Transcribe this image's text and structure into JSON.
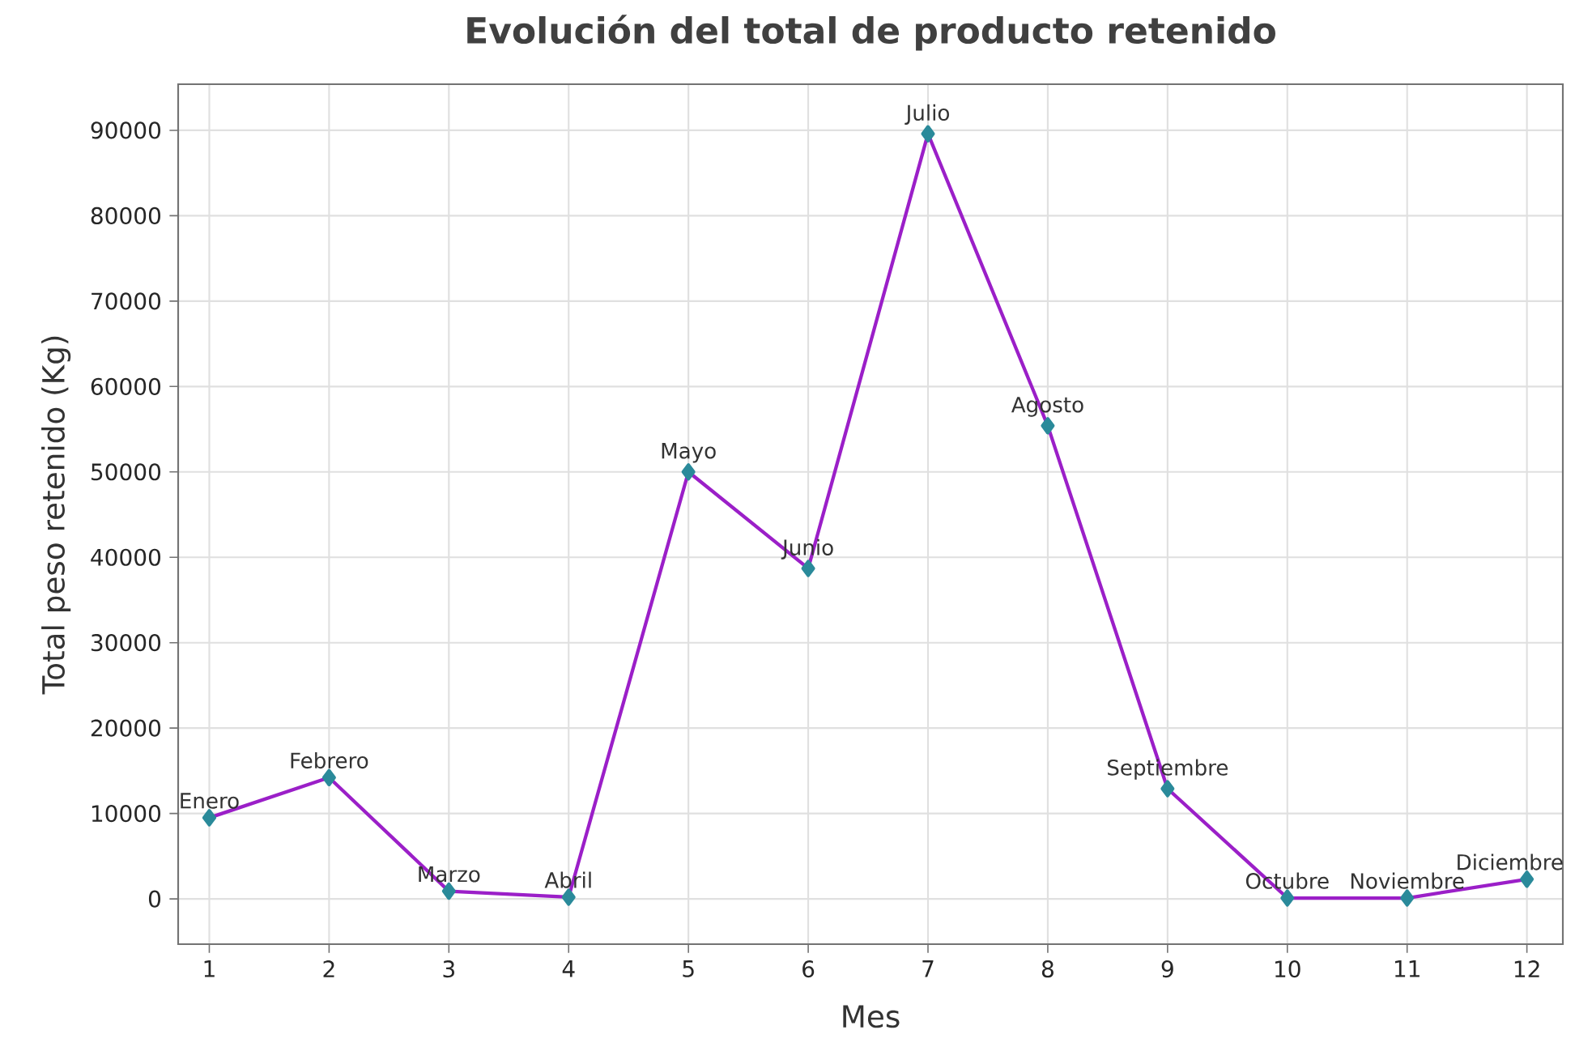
{
  "chart_data": {
    "type": "line",
    "title": "Evolución del total de producto retenido",
    "xlabel": "Mes",
    "ylabel": "Total peso retenido (Kg)",
    "x": [
      1,
      2,
      3,
      4,
      5,
      6,
      7,
      8,
      9,
      10,
      11,
      12
    ],
    "series": [
      {
        "color": "#9b1fc8",
        "values": [
          9500,
          14200,
          900,
          200,
          50000,
          38700,
          89600,
          55400,
          12900,
          100,
          100,
          2300
        ]
      }
    ],
    "xlim": [
      0.74,
      12.3
    ],
    "ylim": [
      -5300,
      95400
    ],
    "xticks": [
      1,
      2,
      3,
      4,
      5,
      6,
      7,
      8,
      9,
      10,
      11,
      12
    ],
    "yticks": [
      0,
      10000,
      20000,
      30000,
      40000,
      50000,
      60000,
      70000,
      80000,
      90000
    ],
    "grid": true,
    "marker": "diamond",
    "line_style": "solid",
    "annotations": [
      {
        "text": "Enero",
        "x": 1,
        "y": 9500
      },
      {
        "text": "Febrero",
        "x": 2,
        "y": 14200
      },
      {
        "text": "Marzo",
        "x": 3,
        "y": 900
      },
      {
        "text": "Abril",
        "x": 4,
        "y": 200
      },
      {
        "text": "Mayo",
        "x": 5,
        "y": 50000
      },
      {
        "text": "Junio",
        "x": 6,
        "y": 38700
      },
      {
        "text": "Julio",
        "x": 7,
        "y": 89600
      },
      {
        "text": "Agosto",
        "x": 8,
        "y": 55400
      },
      {
        "text": "Septiembre",
        "x": 9,
        "y": 12900
      },
      {
        "text": "Octubre",
        "x": 10,
        "y": 100
      },
      {
        "text": "Noviembre",
        "x": 11,
        "y": 100
      },
      {
        "text": "Diciembre",
        "x": 12,
        "y": 2300
      }
    ]
  }
}
